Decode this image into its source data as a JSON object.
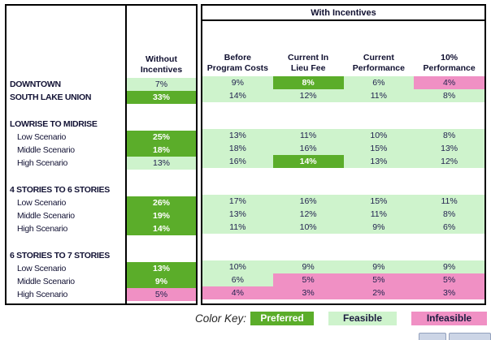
{
  "colors": {
    "preferred": "#5BAD2A",
    "feasible": "#CEF3CC",
    "infeasible": "#F090C4"
  },
  "table": {
    "group_title": "With Incentives",
    "without_header": {
      "line1": "Without",
      "line2": "Incentives"
    },
    "columns": [
      {
        "line1": "Before",
        "line2": "Program Costs"
      },
      {
        "line1": "Current In",
        "line2": "Lieu Fee"
      },
      {
        "line1": "Current",
        "line2": "Performance"
      },
      {
        "line1": "10%",
        "line2": "Performance"
      }
    ],
    "rows": [
      {
        "type": "data",
        "bold": true,
        "label": "DOWNTOWN",
        "cells": [
          {
            "value": "7%",
            "color": "feasible"
          },
          {
            "value": "9%",
            "color": "feasible"
          },
          {
            "value": "8%",
            "color": "preferred"
          },
          {
            "value": "6%",
            "color": "feasible"
          },
          {
            "value": "4%",
            "color": "infeasible"
          }
        ]
      },
      {
        "type": "data",
        "bold": true,
        "label": "SOUTH LAKE UNION",
        "cells": [
          {
            "value": "33%",
            "color": "preferred"
          },
          {
            "value": "14%",
            "color": "feasible"
          },
          {
            "value": "12%",
            "color": "feasible"
          },
          {
            "value": "11%",
            "color": "feasible"
          },
          {
            "value": "8%",
            "color": "feasible"
          }
        ]
      },
      {
        "type": "spacer"
      },
      {
        "type": "section",
        "label": "LOWRISE TO MIDRISE"
      },
      {
        "type": "data",
        "indent": true,
        "label": "Low Scenario",
        "cells": [
          {
            "value": "25%",
            "color": "preferred"
          },
          {
            "value": "13%",
            "color": "feasible"
          },
          {
            "value": "11%",
            "color": "feasible"
          },
          {
            "value": "10%",
            "color": "feasible"
          },
          {
            "value": "8%",
            "color": "feasible"
          }
        ]
      },
      {
        "type": "data",
        "indent": true,
        "label": "Middle Scenario",
        "cells": [
          {
            "value": "18%",
            "color": "preferred"
          },
          {
            "value": "18%",
            "color": "feasible"
          },
          {
            "value": "16%",
            "color": "feasible"
          },
          {
            "value": "15%",
            "color": "feasible"
          },
          {
            "value": "13%",
            "color": "feasible"
          }
        ]
      },
      {
        "type": "data",
        "indent": true,
        "label": "High Scenario",
        "cells": [
          {
            "value": "13%",
            "color": "feasible"
          },
          {
            "value": "16%",
            "color": "feasible"
          },
          {
            "value": "14%",
            "color": "preferred"
          },
          {
            "value": "13%",
            "color": "feasible"
          },
          {
            "value": "12%",
            "color": "feasible"
          }
        ]
      },
      {
        "type": "spacer"
      },
      {
        "type": "section",
        "label": "4 STORIES TO 6 STORIES"
      },
      {
        "type": "data",
        "indent": true,
        "label": "Low Scenario",
        "cells": [
          {
            "value": "26%",
            "color": "preferred"
          },
          {
            "value": "17%",
            "color": "feasible"
          },
          {
            "value": "16%",
            "color": "feasible"
          },
          {
            "value": "15%",
            "color": "feasible"
          },
          {
            "value": "11%",
            "color": "feasible"
          }
        ]
      },
      {
        "type": "data",
        "indent": true,
        "label": "Middle Scenario",
        "cells": [
          {
            "value": "19%",
            "color": "preferred"
          },
          {
            "value": "13%",
            "color": "feasible"
          },
          {
            "value": "12%",
            "color": "feasible"
          },
          {
            "value": "11%",
            "color": "feasible"
          },
          {
            "value": "8%",
            "color": "feasible"
          }
        ]
      },
      {
        "type": "data",
        "indent": true,
        "label": "High Scenario",
        "cells": [
          {
            "value": "14%",
            "color": "preferred"
          },
          {
            "value": "11%",
            "color": "feasible"
          },
          {
            "value": "10%",
            "color": "feasible"
          },
          {
            "value": "9%",
            "color": "feasible"
          },
          {
            "value": "6%",
            "color": "feasible"
          }
        ]
      },
      {
        "type": "spacer"
      },
      {
        "type": "section",
        "label": "6 STORIES TO 7 STORIES"
      },
      {
        "type": "data",
        "indent": true,
        "label": "Low Scenario",
        "cells": [
          {
            "value": "13%",
            "color": "preferred"
          },
          {
            "value": "10%",
            "color": "feasible"
          },
          {
            "value": "9%",
            "color": "feasible"
          },
          {
            "value": "9%",
            "color": "feasible"
          },
          {
            "value": "9%",
            "color": "feasible"
          }
        ]
      },
      {
        "type": "data",
        "indent": true,
        "label": "Middle Scenario",
        "cells": [
          {
            "value": "9%",
            "color": "preferred"
          },
          {
            "value": "6%",
            "color": "feasible"
          },
          {
            "value": "5%",
            "color": "infeasible"
          },
          {
            "value": "5%",
            "color": "infeasible"
          },
          {
            "value": "5%",
            "color": "infeasible"
          }
        ]
      },
      {
        "type": "data",
        "indent": true,
        "label": "High Scenario",
        "cells": [
          {
            "value": "5%",
            "color": "infeasible"
          },
          {
            "value": "4%",
            "color": "infeasible"
          },
          {
            "value": "3%",
            "color": "infeasible"
          },
          {
            "value": "2%",
            "color": "infeasible"
          },
          {
            "value": "3%",
            "color": "infeasible"
          }
        ]
      }
    ]
  },
  "color_key": {
    "label": "Color Key:",
    "items": [
      {
        "label": "Preferred",
        "color": "preferred"
      },
      {
        "label": "Feasible",
        "color": "feasible"
      },
      {
        "label": "Infeasible",
        "color": "infeasible"
      }
    ]
  }
}
